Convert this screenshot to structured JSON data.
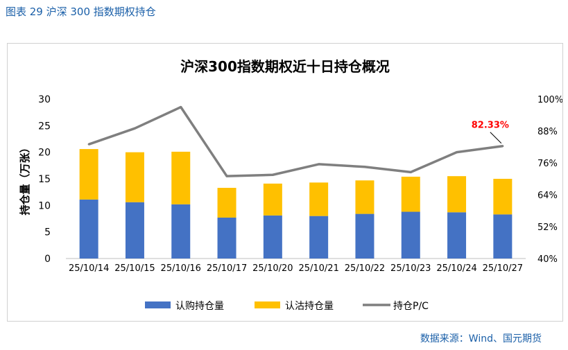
{
  "figure_title": "图表 29 沪深 300 指数期权持仓",
  "source": "数据来源：Wind、国元期货",
  "colors": {
    "call": "#4472c4",
    "put": "#ffc000",
    "pc_line": "#7f7f7f",
    "annotation": "#ff0000",
    "title_blue": "#1a5fa8"
  },
  "chart_data": {
    "type": "bar",
    "title": "沪深300指数期权近十日持仓概况",
    "ylabel": "持仓量（万张）",
    "ylim": [
      0,
      30
    ],
    "y_ticks": [
      "0",
      "5",
      "10",
      "15",
      "20",
      "25",
      "30"
    ],
    "y2lim": [
      0.4,
      1.0
    ],
    "y2_ticks": [
      "40%",
      "52%",
      "64%",
      "76%",
      "88%",
      "100%"
    ],
    "categories": [
      "25/10/14",
      "25/10/15",
      "25/10/16",
      "25/10/17",
      "25/10/20",
      "25/10/21",
      "25/10/22",
      "25/10/23",
      "25/10/24",
      "25/10/27"
    ],
    "series": [
      {
        "name": "认购持仓量",
        "type": "bar",
        "stack": true,
        "values": [
          11.1,
          10.6,
          10.2,
          7.7,
          8.1,
          8.0,
          8.4,
          8.8,
          8.7,
          8.3
        ]
      },
      {
        "name": "认沽持仓量",
        "type": "bar",
        "stack": true,
        "values": [
          9.5,
          9.4,
          9.9,
          5.6,
          6.0,
          6.3,
          6.3,
          6.6,
          6.8,
          6.7
        ]
      },
      {
        "name": "持仓P/C",
        "type": "line",
        "axis": "right",
        "values": [
          0.83,
          0.89,
          0.97,
          0.71,
          0.715,
          0.755,
          0.745,
          0.725,
          0.8,
          0.8233
        ]
      }
    ],
    "annotation": {
      "text": "82.33%",
      "index": 9
    },
    "legend": [
      "认购持仓量",
      "认沽持仓量",
      "持仓P/C"
    ],
    "legend_position": "bottom"
  }
}
